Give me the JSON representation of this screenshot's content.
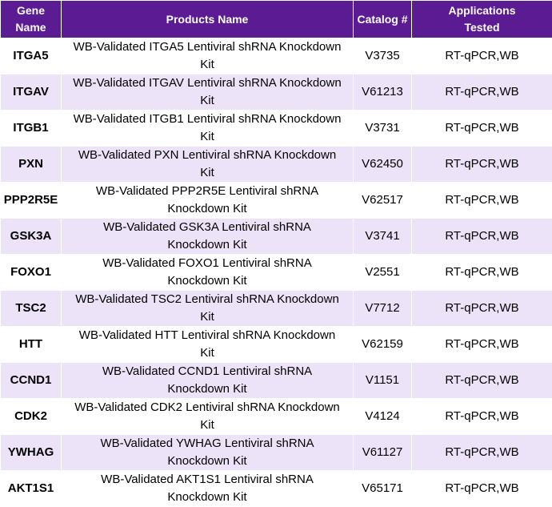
{
  "table": {
    "headers": {
      "gene": [
        "Gene",
        "Name"
      ],
      "product": "Products Name",
      "catalog": "Catalog #",
      "applications": [
        "Applications",
        "Tested"
      ]
    },
    "rows": [
      {
        "gene": "ITGA5",
        "product": [
          "WB-Validated ITGA5 Lentiviral shRNA Knockdown",
          "Kit"
        ],
        "catalog": "V3735",
        "applications": "RT-qPCR,WB"
      },
      {
        "gene": "ITGAV",
        "product": [
          "WB-Validated ITGAV Lentiviral shRNA Knockdown",
          "Kit"
        ],
        "catalog": "V61213",
        "applications": "RT-qPCR,WB"
      },
      {
        "gene": "ITGB1",
        "product": [
          "WB-Validated ITGB1 Lentiviral shRNA Knockdown",
          "Kit"
        ],
        "catalog": "V3731",
        "applications": "RT-qPCR,WB"
      },
      {
        "gene": "PXN",
        "product": [
          "WB-Validated PXN Lentiviral shRNA Knockdown",
          "Kit"
        ],
        "catalog": "V62450",
        "applications": "RT-qPCR,WB"
      },
      {
        "gene": "PPP2R5E",
        "product": [
          "WB-Validated PPP2R5E Lentiviral shRNA",
          "Knockdown Kit"
        ],
        "catalog": "V62517",
        "applications": "RT-qPCR,WB"
      },
      {
        "gene": "GSK3A",
        "product": [
          "WB-Validated GSK3A Lentiviral shRNA",
          "Knockdown Kit"
        ],
        "catalog": "V3741",
        "applications": "RT-qPCR,WB"
      },
      {
        "gene": "FOXO1",
        "product": [
          "WB-Validated FOXO1 Lentiviral shRNA",
          "Knockdown Kit"
        ],
        "catalog": "V2551",
        "applications": "RT-qPCR,WB"
      },
      {
        "gene": "TSC2",
        "product": [
          "WB-Validated TSC2 Lentiviral shRNA Knockdown",
          "Kit"
        ],
        "catalog": "V7712",
        "applications": "RT-qPCR,WB"
      },
      {
        "gene": "HTT",
        "product": [
          "WB-Validated HTT Lentiviral shRNA Knockdown",
          "Kit"
        ],
        "catalog": "V62159",
        "applications": "RT-qPCR,WB"
      },
      {
        "gene": "CCND1",
        "product": [
          "WB-Validated CCND1 Lentiviral shRNA",
          "Knockdown Kit"
        ],
        "catalog": "V1151",
        "applications": "RT-qPCR,WB"
      },
      {
        "gene": "CDK2",
        "product": [
          "WB-Validated CDK2 Lentiviral shRNA Knockdown",
          "Kit"
        ],
        "catalog": "V4124",
        "applications": "RT-qPCR,WB"
      },
      {
        "gene": "YWHAG",
        "product": [
          "WB-Validated YWHAG Lentiviral shRNA",
          "Knockdown Kit"
        ],
        "catalog": "V61127",
        "applications": "RT-qPCR,WB"
      },
      {
        "gene": "AKT1S1",
        "product": [
          "WB-Validated AKT1S1 Lentiviral shRNA",
          "Knockdown Kit"
        ],
        "catalog": "V65171",
        "applications": "RT-qPCR,WB"
      }
    ]
  }
}
